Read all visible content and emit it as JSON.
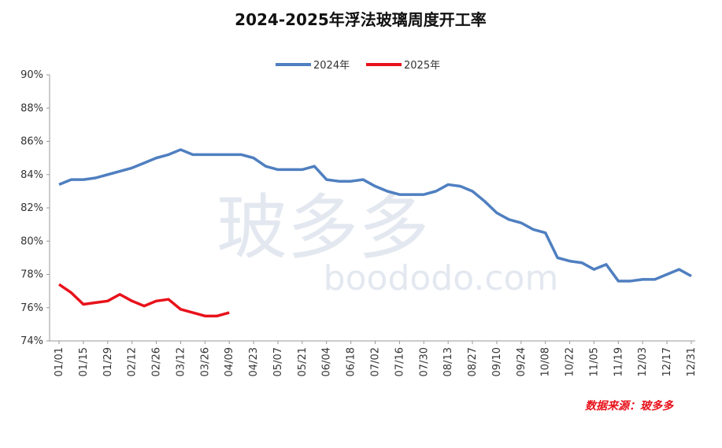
{
  "chart_data": {
    "type": "line",
    "title": "2024-2025年浮法玻璃周度开工率",
    "source": "数据来源：玻多多",
    "watermark": [
      "玻多多",
      "boododo.com"
    ],
    "categories": [
      "01/01",
      null,
      "01/15",
      null,
      "01/29",
      null,
      "02/12",
      null,
      "02/26",
      null,
      "03/12",
      null,
      "03/26",
      null,
      "04/09",
      null,
      "04/23",
      null,
      "05/07",
      null,
      "05/21",
      null,
      "06/04",
      null,
      "06/18",
      null,
      "07/02",
      null,
      "07/16",
      null,
      "07/30",
      null,
      "08/13",
      null,
      "08/27",
      null,
      "09/10",
      null,
      "09/24",
      null,
      "10/08",
      null,
      "10/22",
      null,
      "11/05",
      null,
      "11/19",
      null,
      "12/03",
      null,
      "12/17",
      null,
      "12/31"
    ],
    "series": [
      {
        "name": "2024年",
        "color": "#4f7fc0",
        "values": [
          83.4,
          83.7,
          83.7,
          83.8,
          84.0,
          84.2,
          84.4,
          84.7,
          85.0,
          85.2,
          85.5,
          85.2,
          85.2,
          85.2,
          85.2,
          85.2,
          85.0,
          84.5,
          84.3,
          84.3,
          84.3,
          84.5,
          83.7,
          83.6,
          83.6,
          83.7,
          83.3,
          83.0,
          82.8,
          82.8,
          82.8,
          83.0,
          83.4,
          83.3,
          83.0,
          82.4,
          81.7,
          81.3,
          81.1,
          80.7,
          80.5,
          79.0,
          78.8,
          78.7,
          78.3,
          78.6,
          77.6,
          77.6,
          77.7,
          77.7,
          78.0,
          78.3,
          77.9
        ]
      },
      {
        "name": "2025年",
        "color": "#e8121b",
        "values": [
          77.4,
          76.9,
          76.2,
          76.3,
          76.4,
          76.8,
          76.4,
          76.1,
          76.4,
          76.5,
          75.9,
          75.7,
          75.5,
          75.5,
          75.7,
          null,
          null,
          null,
          null,
          null,
          null,
          null,
          null,
          null,
          null,
          null,
          null,
          null,
          null,
          null,
          null,
          null,
          null,
          null,
          null,
          null,
          null,
          null,
          null,
          null,
          null,
          null,
          null,
          null,
          null,
          null,
          null,
          null,
          null,
          null,
          null,
          null,
          null
        ]
      }
    ],
    "ylim": [
      74,
      90
    ],
    "yticks": [
      {
        "value": 74,
        "label": "74%"
      },
      {
        "value": 76,
        "label": "76%"
      },
      {
        "value": 78,
        "label": "78%"
      },
      {
        "value": 80,
        "label": "80%"
      },
      {
        "value": 82,
        "label": "82%"
      },
      {
        "value": 84,
        "label": "84%"
      },
      {
        "value": 86,
        "label": "86%"
      },
      {
        "value": 88,
        "label": "88%"
      },
      {
        "value": 90,
        "label": "90%"
      }
    ],
    "legend": "top"
  }
}
